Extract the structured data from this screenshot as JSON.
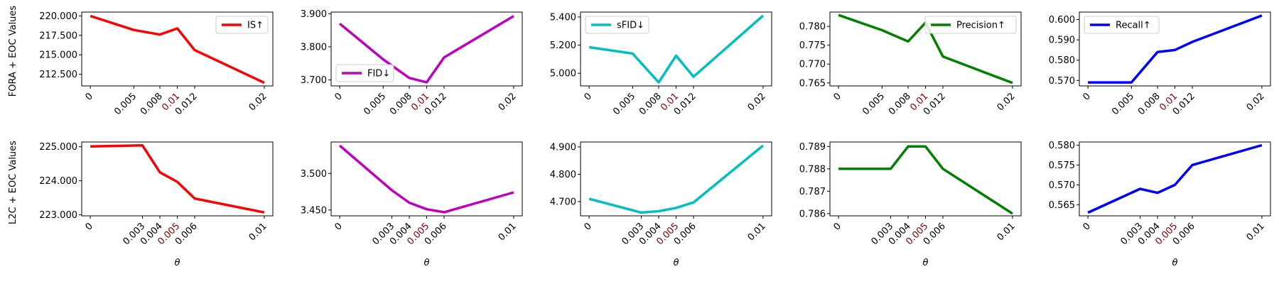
{
  "figure": {
    "row_labels": [
      "FORA + EOC Values",
      "L2C + EOC Values"
    ],
    "xlabel": "θ"
  },
  "colors": {
    "IS": "#ff0000",
    "FID": "#bf00bf",
    "sFID": "#00bfbf",
    "Precision": "#008000",
    "Recall": "#0000ff",
    "highlight_tick": "#8b0000"
  },
  "chart_data": [
    {
      "type": "line",
      "row": 0,
      "col": 0,
      "color_key": "IS",
      "x": [
        0,
        0.005,
        0.008,
        0.01,
        0.012,
        0.02
      ],
      "xtick_labels": [
        "0",
        "0.005",
        "0.008",
        "0.01",
        "0.012",
        "0.02"
      ],
      "highlight_tick": "0.01",
      "series": [
        {
          "name": "IS↑",
          "values": [
            220.0,
            218.2,
            217.6,
            218.4,
            215.6,
            211.4
          ]
        }
      ],
      "yticks": [
        212.5,
        215.0,
        217.5,
        220.0
      ],
      "ytick_labels": [
        "212.500",
        "215.000",
        "217.500",
        "220.000"
      ],
      "ylim": [
        211.0,
        220.5
      ],
      "legend": "top-right",
      "xlabel": ""
    },
    {
      "type": "line",
      "row": 0,
      "col": 1,
      "color_key": "FID",
      "x": [
        0,
        0.005,
        0.008,
        0.01,
        0.012,
        0.02
      ],
      "xtick_labels": [
        "0",
        "0.005",
        "0.008",
        "0.01",
        "0.012",
        "0.02"
      ],
      "highlight_tick": "0.01",
      "series": [
        {
          "name": "FID↓",
          "values": [
            3.87,
            3.762,
            3.706,
            3.693,
            3.768,
            3.893
          ]
        }
      ],
      "yticks": [
        3.7,
        3.8,
        3.9
      ],
      "ytick_labels": [
        "3.700",
        "3.800",
        "3.900"
      ],
      "ylim": [
        3.682,
        3.905
      ],
      "legend": "bottom-left",
      "xlabel": ""
    },
    {
      "type": "line",
      "row": 0,
      "col": 2,
      "color_key": "sFID",
      "x": [
        0,
        0.005,
        0.008,
        0.01,
        0.012,
        0.02
      ],
      "xtick_labels": [
        "0",
        "0.005",
        "0.008",
        "0.01",
        "0.012",
        "0.02"
      ],
      "highlight_tick": "0.01",
      "series": [
        {
          "name": "sFID↓",
          "values": [
            5.185,
            5.14,
            4.935,
            5.125,
            4.975,
            5.41
          ]
        }
      ],
      "yticks": [
        5.0,
        5.2,
        5.4
      ],
      "ytick_labels": [
        "5.000",
        "5.200",
        "5.400"
      ],
      "ylim": [
        4.91,
        5.435
      ],
      "legend": "top-left",
      "xlabel": ""
    },
    {
      "type": "line",
      "row": 0,
      "col": 3,
      "color_key": "Precision",
      "x": [
        0,
        0.005,
        0.008,
        0.01,
        0.012,
        0.02
      ],
      "xtick_labels": [
        "0",
        "0.005",
        "0.008",
        "0.01",
        "0.012",
        "0.02"
      ],
      "highlight_tick": "0.01",
      "series": [
        {
          "name": "Precision↑",
          "values": [
            0.783,
            0.779,
            0.776,
            0.781,
            0.772,
            0.765
          ]
        }
      ],
      "yticks": [
        0.765,
        0.77,
        0.775,
        0.78
      ],
      "ytick_labels": [
        "0.765",
        "0.770",
        "0.775",
        "0.780"
      ],
      "ylim": [
        0.7642,
        0.7838
      ],
      "legend": "top-right",
      "xlabel": ""
    },
    {
      "type": "line",
      "row": 0,
      "col": 4,
      "color_key": "Recall",
      "x": [
        0,
        0.005,
        0.008,
        0.01,
        0.012,
        0.02
      ],
      "xtick_labels": [
        "0",
        "0.005",
        "0.008",
        "0.01",
        "0.012",
        "0.02"
      ],
      "highlight_tick": "0.01",
      "series": [
        {
          "name": "Recall↑",
          "values": [
            0.569,
            0.569,
            0.584,
            0.585,
            0.589,
            0.602
          ]
        }
      ],
      "yticks": [
        0.57,
        0.58,
        0.59,
        0.6
      ],
      "ytick_labels": [
        "0.570",
        "0.580",
        "0.590",
        "0.600"
      ],
      "ylim": [
        0.5673,
        0.6037
      ],
      "legend": "top-left",
      "xlabel": ""
    },
    {
      "type": "line",
      "row": 1,
      "col": 0,
      "color_key": "IS",
      "x": [
        0,
        0.003,
        0.004,
        0.005,
        0.006,
        0.01
      ],
      "xtick_labels": [
        "0",
        "0.003",
        "0.004",
        "0.005",
        "0.006",
        "0.01"
      ],
      "highlight_tick": "0.005",
      "series": [
        {
          "values": [
            225.01,
            225.04,
            224.25,
            223.97,
            223.48,
            223.07
          ]
        }
      ],
      "yticks": [
        223.0,
        224.0,
        225.0
      ],
      "ytick_labels": [
        "223.000",
        "224.000",
        "225.000"
      ],
      "ylim": [
        222.97,
        225.14
      ],
      "legend": "none",
      "xlabel": "θ"
    },
    {
      "type": "line",
      "row": 1,
      "col": 1,
      "color_key": "FID",
      "x": [
        0,
        0.003,
        0.004,
        0.005,
        0.006,
        0.01
      ],
      "xtick_labels": [
        "0",
        "0.003",
        "0.004",
        "0.005",
        "0.006",
        "0.01"
      ],
      "highlight_tick": "0.005",
      "series": [
        {
          "values": [
            3.538,
            3.477,
            3.46,
            3.451,
            3.447,
            3.474
          ]
        }
      ],
      "yticks": [
        3.45,
        3.5
      ],
      "ytick_labels": [
        "3.450",
        "3.500"
      ],
      "ylim": [
        3.442,
        3.543
      ],
      "legend": "none",
      "xlabel": "θ"
    },
    {
      "type": "line",
      "row": 1,
      "col": 2,
      "color_key": "sFID",
      "x": [
        0,
        0.003,
        0.004,
        0.005,
        0.006,
        0.01
      ],
      "xtick_labels": [
        "0",
        "0.003",
        "0.004",
        "0.005",
        "0.006",
        "0.01"
      ],
      "highlight_tick": "0.005",
      "series": [
        {
          "values": [
            4.71,
            4.66,
            4.665,
            4.677,
            4.697,
            4.905
          ]
        }
      ],
      "yticks": [
        4.7,
        4.8,
        4.9
      ],
      "ytick_labels": [
        "4.700",
        "4.800",
        "4.900"
      ],
      "ylim": [
        4.648,
        4.918
      ],
      "legend": "none",
      "xlabel": "θ"
    },
    {
      "type": "line",
      "row": 1,
      "col": 3,
      "color_key": "Precision",
      "x": [
        0,
        0.003,
        0.004,
        0.005,
        0.006,
        0.01
      ],
      "xtick_labels": [
        "0",
        "0.003",
        "0.004",
        "0.005",
        "0.006",
        "0.01"
      ],
      "highlight_tick": "0.005",
      "series": [
        {
          "values": [
            0.788,
            0.788,
            0.789,
            0.789,
            0.788,
            0.786
          ]
        }
      ],
      "yticks": [
        0.786,
        0.787,
        0.788,
        0.789
      ],
      "ytick_labels": [
        "0.786",
        "0.787",
        "0.788",
        "0.789"
      ],
      "ylim": [
        0.7859,
        0.7892
      ],
      "legend": "none",
      "xlabel": "θ"
    },
    {
      "type": "line",
      "row": 1,
      "col": 4,
      "color_key": "Recall",
      "x": [
        0,
        0.003,
        0.004,
        0.005,
        0.006,
        0.01
      ],
      "xtick_labels": [
        "0",
        "0.003",
        "0.004",
        "0.005",
        "0.006",
        "0.01"
      ],
      "highlight_tick": "0.005",
      "series": [
        {
          "values": [
            0.563,
            0.569,
            0.568,
            0.57,
            0.575,
            0.58
          ]
        }
      ],
      "yticks": [
        0.565,
        0.57,
        0.575,
        0.58
      ],
      "ytick_labels": [
        "0.565",
        "0.570",
        "0.575",
        "0.580"
      ],
      "ylim": [
        0.5622,
        0.5808
      ],
      "legend": "none",
      "xlabel": "θ"
    }
  ]
}
